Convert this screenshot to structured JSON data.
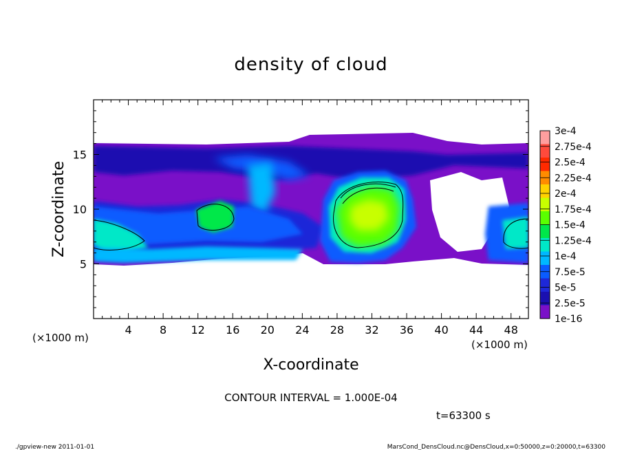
{
  "chart_data": {
    "type": "heatmap",
    "title": "density of cloud",
    "xlabel": "X-coordinate",
    "ylabel": "Z-coordinate",
    "x_unit": "(×1000 m)",
    "x_ticks": [
      4,
      8,
      12,
      16,
      20,
      24,
      28,
      32,
      36,
      40,
      44,
      48
    ],
    "y_ticks": [
      5,
      10,
      15
    ],
    "xlim": [
      0,
      50
    ],
    "ylim": [
      0,
      20
    ],
    "colorbar": {
      "labels": [
        "3e-4",
        "2.75e-4",
        "2.5e-4",
        "2.25e-4",
        "2e-4",
        "1.75e-4",
        "1.5e-4",
        "1.25e-4",
        "1e-4",
        "7.5e-5",
        "5e-5",
        "2.5e-5",
        "1e-16"
      ],
      "colors": [
        "#ff9e9e",
        "#ff4a3c",
        "#ff2a00",
        "#ff8c00",
        "#ffd200",
        "#c8ff00",
        "#5aff00",
        "#00e84a",
        "#00e8c8",
        "#00b8ff",
        "#0a5cff",
        "#1e28d8",
        "#1a10b0",
        "#7a10c8"
      ]
    },
    "cloud_region": {
      "x_range": [
        0,
        50
      ],
      "z_range": [
        5,
        16
      ],
      "dense_core": {
        "x_center": 32,
        "z_center": 10,
        "peak_density": "1.5e-4"
      }
    },
    "contour_interval": "CONTOUR INTERVAL = 1.000E-04",
    "time_label": "t=63300 s"
  },
  "footer": {
    "left": "./gpview-new   2011-01-01",
    "right": "MarsCond_DensCloud.nc@DensCloud,x=0:50000,z=0:20000,t=63300"
  }
}
